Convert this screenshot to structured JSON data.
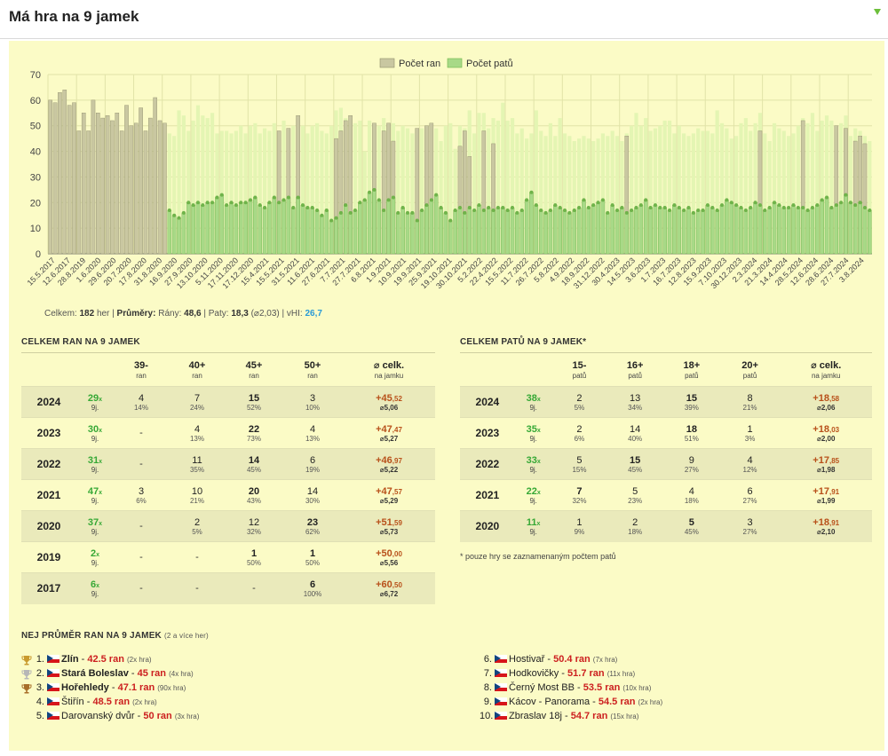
{
  "header": {
    "title": "Má hra na 9 jamek"
  },
  "chart_data": {
    "type": "bar",
    "legend": [
      "Počet ran",
      "Počet patů"
    ],
    "legend_position": "top-center",
    "ylim": [
      0,
      70
    ],
    "yticks": [
      0,
      10,
      20,
      30,
      40,
      50,
      60,
      70
    ],
    "grid": true,
    "x_tick_labels": [
      "15.5.2017",
      "12.6.2017",
      "28.8.2019",
      "1.6.2020",
      "29.6.2020",
      "20.7.2020",
      "17.8.2020",
      "31.8.2020",
      "16.9.2020",
      "27.9.2020",
      "13.10.2020",
      "5.11.2020",
      "17.11.2020",
      "17.12.2020",
      "15.4.2021",
      "15.5.2021",
      "31.5.2021",
      "11.6.2021",
      "27.6.2021",
      "7.7.2021",
      "27.7.2021",
      "6.8.2021",
      "1.9.2021",
      "10.9.2021",
      "19.9.2021",
      "25.9.2021",
      "19.10.2021",
      "30.10.2021",
      "5.2.2022",
      "22.4.2022",
      "15.5.2022",
      "11.7.2022",
      "26.7.2022",
      "5.8.2022",
      "4.9.2022",
      "18.9.2022",
      "31.12.2022",
      "30.4.2023",
      "14.5.2023",
      "3.6.2023",
      "1.7.2023",
      "16.7.2023",
      "12.8.2023",
      "15.9.2023",
      "7.10.2023",
      "30.12.2023",
      "2.3.2024",
      "21.3.2024",
      "14.4.2024",
      "28.5.2024",
      "12.6.2024",
      "28.6.2024",
      "27.7.2024",
      "3.8.2024"
    ],
    "series": [
      {
        "name": "Počet ran",
        "values": [
          60,
          59,
          63,
          64,
          58,
          59,
          48,
          55,
          48,
          60,
          55,
          53,
          54,
          52,
          55,
          48,
          58,
          50,
          51,
          57,
          48,
          53,
          61,
          52,
          51,
          null,
          null,
          null,
          null,
          null,
          null,
          null,
          null,
          null,
          null,
          null,
          null,
          null,
          null,
          null,
          null,
          null,
          null,
          null,
          null,
          null,
          null,
          null,
          48,
          null,
          49,
          null,
          54,
          null,
          null,
          null,
          null,
          null,
          null,
          null,
          45,
          48,
          52,
          54,
          null,
          null,
          null,
          null,
          51,
          null,
          48,
          51,
          44,
          null,
          null,
          null,
          null,
          49,
          null,
          50,
          51,
          null,
          null,
          null,
          null,
          null,
          42,
          48,
          38,
          null,
          null,
          48,
          null,
          43,
          null,
          null,
          null,
          null,
          null,
          null,
          null,
          null,
          null,
          null,
          null,
          null,
          null,
          null,
          null,
          null,
          null,
          null,
          null,
          null,
          null,
          null,
          null,
          null,
          null,
          null,
          null,
          46,
          null,
          null,
          null,
          null,
          null,
          null,
          null,
          null,
          null,
          null,
          null,
          null,
          null,
          null,
          null,
          null,
          null,
          null,
          null,
          null,
          null,
          null,
          null,
          null,
          null,
          null,
          null,
          48,
          null,
          null,
          null,
          null,
          null,
          null,
          null,
          null,
          52,
          null,
          null,
          null,
          null,
          null,
          null,
          50,
          null,
          49,
          null,
          44,
          46,
          43,
          null
        ]
      },
      {
        "name": "Počet patů",
        "values": [
          null,
          null,
          null,
          null,
          null,
          null,
          null,
          null,
          null,
          null,
          null,
          null,
          null,
          null,
          null,
          null,
          null,
          null,
          null,
          null,
          null,
          null,
          null,
          null,
          null,
          17,
          15,
          14,
          16,
          20,
          19,
          20,
          19,
          20,
          20,
          22,
          23,
          19,
          20,
          19,
          20,
          20,
          21,
          22,
          19,
          18,
          20,
          22,
          20,
          21,
          22,
          18,
          22,
          19,
          18,
          18,
          17,
          15,
          17,
          13,
          14,
          16,
          19,
          16,
          17,
          20,
          21,
          24,
          25,
          21,
          17,
          21,
          22,
          16,
          18,
          16,
          16,
          13,
          17,
          19,
          21,
          23,
          18,
          16,
          13,
          17,
          18,
          16,
          18,
          17,
          19,
          17,
          18,
          17,
          18,
          18,
          17,
          18,
          16,
          17,
          21,
          24,
          19,
          17,
          16,
          17,
          19,
          18,
          17,
          16,
          17,
          18,
          21,
          18,
          19,
          20,
          21,
          16,
          19,
          17,
          18,
          16,
          17,
          18,
          19,
          21,
          18,
          19,
          18,
          18,
          17,
          19,
          18,
          17,
          18,
          16,
          17,
          17,
          19,
          18,
          17,
          19,
          21,
          20,
          19,
          18,
          17,
          18,
          20,
          19,
          17,
          18,
          20,
          19,
          18,
          18,
          19,
          18,
          18,
          17,
          18,
          19,
          21,
          22,
          18,
          19,
          20,
          23,
          20,
          19,
          20,
          18,
          17,
          18,
          18,
          17,
          18,
          17,
          18,
          19,
          18,
          20,
          18,
          17,
          20,
          18
        ]
      }
    ],
    "total_height_series": [
      null,
      null,
      null,
      null,
      null,
      null,
      null,
      null,
      null,
      null,
      null,
      null,
      null,
      null,
      null,
      null,
      null,
      null,
      null,
      null,
      null,
      null,
      null,
      null,
      null,
      47,
      46,
      56,
      54,
      48,
      52,
      58,
      54,
      53,
      55,
      47,
      48,
      48,
      47,
      48,
      50,
      47,
      50,
      51,
      47,
      49,
      48,
      51,
      47,
      52,
      48,
      50,
      54,
      50,
      47,
      50,
      51,
      48,
      47,
      50,
      56,
      57,
      53,
      50,
      51,
      52,
      40,
      52,
      48,
      50,
      53,
      50,
      51,
      48,
      50,
      49,
      47,
      48,
      49,
      50,
      48,
      49,
      44,
      50,
      51,
      41,
      50,
      49,
      56,
      47,
      55,
      55,
      49,
      53,
      52,
      59,
      52,
      53,
      47,
      49,
      45,
      47,
      56,
      48,
      46,
      51,
      46,
      53,
      47,
      46,
      44,
      45,
      46,
      45,
      44,
      45,
      47,
      46,
      48,
      46,
      44,
      47,
      50,
      55,
      50,
      53,
      48,
      49,
      50,
      52,
      52,
      47,
      50,
      47,
      46,
      47,
      49,
      48,
      48,
      47,
      56,
      51,
      49,
      45,
      46,
      51,
      53,
      48,
      51,
      55,
      47,
      44,
      51,
      49,
      48,
      46,
      47,
      50,
      53,
      51,
      55,
      48,
      52,
      54,
      52,
      47,
      51,
      54,
      46,
      49,
      48,
      46,
      44,
      46,
      47,
      48,
      45,
      49,
      43,
      47,
      47,
      48,
      45,
      44,
      46,
      42
    ]
  },
  "summary": {
    "celkem_label": "Celkem:",
    "celkem_value": "182",
    "celkem_unit": "her",
    "prumery_label": "Průměry:",
    "rany_label": "Rány:",
    "rany_value": "48,6",
    "paty_label": "Paty:",
    "paty_value": "18,3",
    "paty_extra": "(⌀2,03)",
    "vhi_label": "vHI:",
    "vhi_value": "26,7"
  },
  "shots": {
    "title": "CELKEM RAN NA 9 JAMEK",
    "headers": [
      {
        "label": "",
        "sub": ""
      },
      {
        "label": "",
        "sub": ""
      },
      {
        "label": "39-",
        "sub": "ran"
      },
      {
        "label": "40+",
        "sub": "ran"
      },
      {
        "label": "45+",
        "sub": "ran"
      },
      {
        "label": "50+",
        "sub": "ran"
      },
      {
        "label": "⌀ celk.",
        "sub": "na jamku"
      }
    ],
    "rows": [
      {
        "year": "2024",
        "count": "29",
        "x": "x",
        "j": "9j.",
        "cells": [
          [
            "4",
            "14%",
            false
          ],
          [
            "7",
            "24%",
            false
          ],
          [
            "15",
            "52%",
            true
          ],
          [
            "3",
            "10%",
            false
          ]
        ],
        "total": "+45",
        "total_dec": ",52",
        "avg": "⌀5,06"
      },
      {
        "year": "2023",
        "count": "30",
        "x": "x",
        "j": "9j.",
        "cells": [
          [
            "-",
            "",
            false
          ],
          [
            "4",
            "13%",
            false
          ],
          [
            "22",
            "73%",
            true
          ],
          [
            "4",
            "13%",
            false
          ]
        ],
        "total": "+47",
        "total_dec": ",47",
        "avg": "⌀5,27"
      },
      {
        "year": "2022",
        "count": "31",
        "x": "x",
        "j": "9j.",
        "cells": [
          [
            "-",
            "",
            false
          ],
          [
            "11",
            "35%",
            false
          ],
          [
            "14",
            "45%",
            true
          ],
          [
            "6",
            "19%",
            false
          ]
        ],
        "total": "+46",
        "total_dec": ",97",
        "avg": "⌀5,22"
      },
      {
        "year": "2021",
        "count": "47",
        "x": "x",
        "j": "9j.",
        "cells": [
          [
            "3",
            "6%",
            false
          ],
          [
            "10",
            "21%",
            false
          ],
          [
            "20",
            "43%",
            true
          ],
          [
            "14",
            "30%",
            false
          ]
        ],
        "total": "+47",
        "total_dec": ",57",
        "avg": "⌀5,29"
      },
      {
        "year": "2020",
        "count": "37",
        "x": "x",
        "j": "9j.",
        "cells": [
          [
            "-",
            "",
            false
          ],
          [
            "2",
            "5%",
            false
          ],
          [
            "12",
            "32%",
            false
          ],
          [
            "23",
            "62%",
            true
          ]
        ],
        "total": "+51",
        "total_dec": ",59",
        "avg": "⌀5,73"
      },
      {
        "year": "2019",
        "count": "2",
        "x": "x",
        "j": "9j.",
        "cells": [
          [
            "-",
            "",
            false
          ],
          [
            "-",
            "",
            false
          ],
          [
            "1",
            "50%",
            true
          ],
          [
            "1",
            "50%",
            true
          ]
        ],
        "total": "+50",
        "total_dec": ",00",
        "avg": "⌀5,56"
      },
      {
        "year": "2017",
        "count": "6",
        "x": "x",
        "j": "9j.",
        "cells": [
          [
            "-",
            "",
            false
          ],
          [
            "-",
            "",
            false
          ],
          [
            "-",
            "",
            false
          ],
          [
            "6",
            "100%",
            true
          ]
        ],
        "total": "+60",
        "total_dec": ",50",
        "avg": "⌀6,72"
      }
    ]
  },
  "putts": {
    "title": "CELKEM PATŮ NA 9 JAMEK*",
    "headers": [
      {
        "label": "",
        "sub": ""
      },
      {
        "label": "",
        "sub": ""
      },
      {
        "label": "15-",
        "sub": "patů"
      },
      {
        "label": "16+",
        "sub": "patů"
      },
      {
        "label": "18+",
        "sub": "patů"
      },
      {
        "label": "20+",
        "sub": "patů"
      },
      {
        "label": "⌀ celk.",
        "sub": "na jamku"
      }
    ],
    "rows": [
      {
        "year": "2024",
        "count": "38",
        "x": "x",
        "j": "9j.",
        "cells": [
          [
            "2",
            "5%",
            false
          ],
          [
            "13",
            "34%",
            false
          ],
          [
            "15",
            "39%",
            true
          ],
          [
            "8",
            "21%",
            false
          ]
        ],
        "total": "+18",
        "total_dec": ",58",
        "avg": "⌀2,06"
      },
      {
        "year": "2023",
        "count": "35",
        "x": "x",
        "j": "9j.",
        "cells": [
          [
            "2",
            "6%",
            false
          ],
          [
            "14",
            "40%",
            false
          ],
          [
            "18",
            "51%",
            true
          ],
          [
            "1",
            "3%",
            false
          ]
        ],
        "total": "+18",
        "total_dec": ",03",
        "avg": "⌀2,00"
      },
      {
        "year": "2022",
        "count": "33",
        "x": "x",
        "j": "9j.",
        "cells": [
          [
            "5",
            "15%",
            false
          ],
          [
            "15",
            "45%",
            true
          ],
          [
            "9",
            "27%",
            false
          ],
          [
            "4",
            "12%",
            false
          ]
        ],
        "total": "+17",
        "total_dec": ",85",
        "avg": "⌀1,98"
      },
      {
        "year": "2021",
        "count": "22",
        "x": "x",
        "j": "9j.",
        "cells": [
          [
            "7",
            "32%",
            true
          ],
          [
            "5",
            "23%",
            false
          ],
          [
            "4",
            "18%",
            false
          ],
          [
            "6",
            "27%",
            false
          ]
        ],
        "total": "+17",
        "total_dec": ",91",
        "avg": "⌀1,99"
      },
      {
        "year": "2020",
        "count": "11",
        "x": "x",
        "j": "9j.",
        "cells": [
          [
            "1",
            "9%",
            false
          ],
          [
            "2",
            "18%",
            false
          ],
          [
            "5",
            "45%",
            true
          ],
          [
            "3",
            "27%",
            false
          ]
        ],
        "total": "+18",
        "total_dec": ",91",
        "avg": "⌀2,10"
      }
    ],
    "note": "* pouze hry se zaznamenaným počtem patů"
  },
  "best": {
    "title": "NEJ PRŮMĚR RAN NA 9 JAMEK",
    "title_small": "(2 a více her)",
    "items": [
      {
        "pos": "1.",
        "name": "Zlín",
        "score": "42.5 ran",
        "cnt": "(2x hra)",
        "top": true,
        "trophy": "#c99a2e"
      },
      {
        "pos": "2.",
        "name": "Stará Boleslav",
        "score": "45 ran",
        "cnt": "(4x hra)",
        "top": true,
        "trophy": "#b7b7b7"
      },
      {
        "pos": "3.",
        "name": "Hořehledy",
        "score": "47.1 ran",
        "cnt": "(90x hra)",
        "top": true,
        "trophy": "#a86f2a"
      },
      {
        "pos": "4.",
        "name": "Štiřín",
        "score": "48.5 ran",
        "cnt": "(2x hra)",
        "top": false
      },
      {
        "pos": "5.",
        "name": "Darovanský dvůr",
        "score": "50 ran",
        "cnt": "(3x hra)",
        "top": false
      },
      {
        "pos": "6.",
        "name": "Hostivař",
        "score": "50.4 ran",
        "cnt": "(7x hra)",
        "top": false
      },
      {
        "pos": "7.",
        "name": "Hodkovičky",
        "score": "51.7 ran",
        "cnt": "(11x hra)",
        "top": false
      },
      {
        "pos": "8.",
        "name": "Černý Most BB",
        "score": "53.5 ran",
        "cnt": "(10x hra)",
        "top": false
      },
      {
        "pos": "9.",
        "name": "Kácov - Panorama",
        "score": "54.5 ran",
        "cnt": "(2x hra)",
        "top": false
      },
      {
        "pos": "10.",
        "name": "Zbraslav 18j",
        "score": "54.7 ran",
        "cnt": "(15x hra)",
        "top": false
      }
    ]
  },
  "colors": {
    "shots_bar": "#c9c7a1",
    "shots_bar_edge": "#8f8d6c",
    "putt_bar": "#a8d987",
    "putt_bar_edge": "#6fb34a",
    "putt_pale": "#e4f5b3",
    "panel_bg": "#fbfbc6",
    "grid": "#e1e3a8"
  }
}
